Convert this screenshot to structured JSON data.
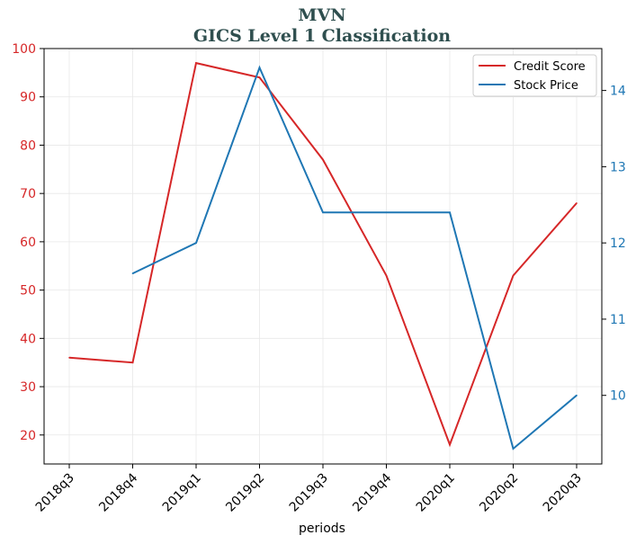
{
  "chart_data": {
    "type": "line",
    "title": "MVN",
    "subtitle": "GICS Level 1 Classification",
    "xlabel": "periods",
    "categories": [
      "2018q3",
      "2018q4",
      "2019q1",
      "2019q2",
      "2019q3",
      "2019q4",
      "2020q1",
      "2020q2",
      "2020q3"
    ],
    "series": [
      {
        "name": "Credit Score",
        "axis": "left",
        "color": "#d62728",
        "values": [
          36,
          35,
          97,
          94,
          77,
          53,
          18,
          53,
          68
        ]
      },
      {
        "name": "Stock Price",
        "axis": "right",
        "color": "#1f77b4",
        "values": [
          null,
          11.6,
          12.0,
          14.3,
          12.4,
          12.4,
          12.4,
          9.3,
          10.0
        ]
      }
    ],
    "y_left": {
      "ylim": [
        14,
        100
      ],
      "ticks": [
        20,
        30,
        40,
        50,
        60,
        70,
        80,
        90,
        100
      ],
      "color": "#d62728"
    },
    "y_right": {
      "ylim": [
        9.1,
        14.55
      ],
      "ticks": [
        10,
        11,
        12,
        13,
        14
      ],
      "color": "#1f77b4"
    },
    "grid": true,
    "legend": "top-right"
  }
}
